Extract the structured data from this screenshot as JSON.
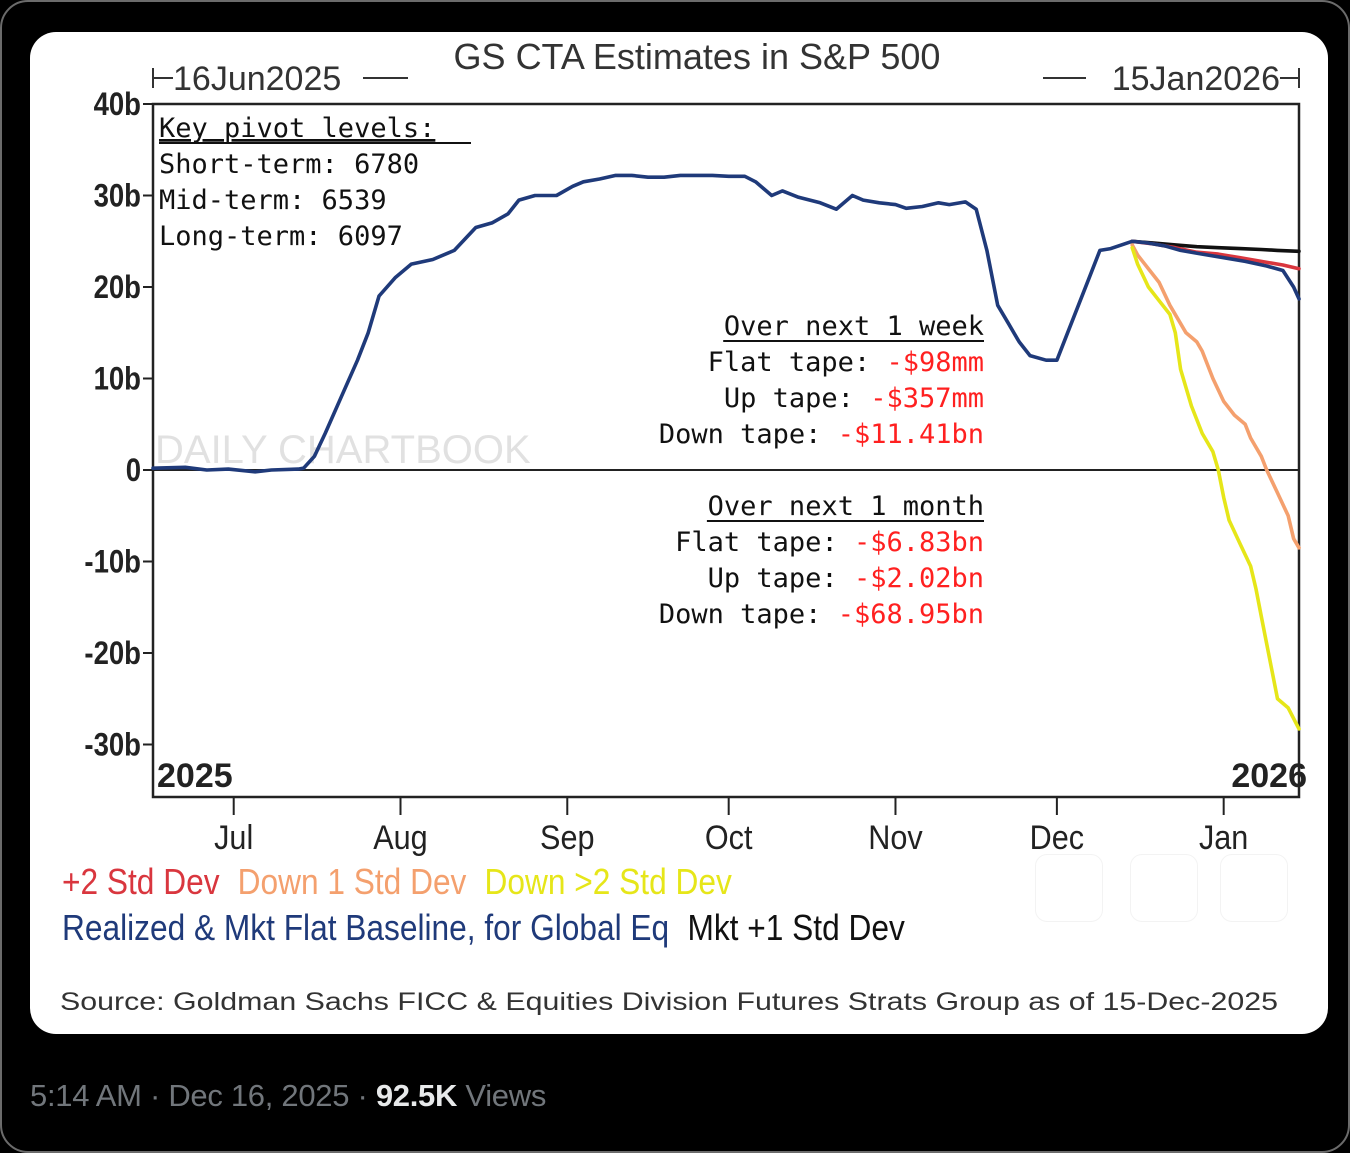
{
  "tweet_meta": {
    "time": "5:14 AM",
    "separator": "·",
    "date": "Dec 16, 2025",
    "views_count": "92.5K",
    "views_label": "Views"
  },
  "chart_data": {
    "type": "line",
    "title": "GS CTA Estimates in S&P 500",
    "start_date_label": "16Jun2025",
    "end_date_label": "15Jan2026",
    "xlabel": "",
    "ylabel": "",
    "x_units": "days since 16 Jun 2025",
    "xlim": [
      0,
      213
    ],
    "ylim": [
      -35,
      40
    ],
    "y_ticks": [
      {
        "value": 40,
        "label": "40b"
      },
      {
        "value": 30,
        "label": "30b"
      },
      {
        "value": 20,
        "label": "20b"
      },
      {
        "value": 10,
        "label": "10b"
      },
      {
        "value": 0,
        "label": "0"
      },
      {
        "value": -10,
        "label": "-10b"
      },
      {
        "value": -20,
        "label": "-20b"
      },
      {
        "value": -30,
        "label": "-30b"
      }
    ],
    "x_ticks": [
      {
        "value": 15,
        "label": "Jul"
      },
      {
        "value": 46,
        "label": "Aug"
      },
      {
        "value": 77,
        "label": "Sep"
      },
      {
        "value": 107,
        "label": "Oct"
      },
      {
        "value": 138,
        "label": "Nov"
      },
      {
        "value": 168,
        "label": "Dec"
      },
      {
        "value": 199,
        "label": "Jan"
      }
    ],
    "year_labels": {
      "left": "2025",
      "right": "2026"
    },
    "grid": false,
    "zero_line": true,
    "watermark": "DAILY CHARTBOOK",
    "series": [
      {
        "name": "Realized & Mkt Flat Baseline, for Global Eq",
        "color": "#1f3a7a",
        "points": [
          [
            0,
            0.2
          ],
          [
            6,
            0.3
          ],
          [
            10,
            0
          ],
          [
            14,
            0.1
          ],
          [
            19,
            -0.2
          ],
          [
            22,
            0
          ],
          [
            27,
            0.1
          ],
          [
            28,
            0.2
          ],
          [
            30,
            1.5
          ],
          [
            32,
            4
          ],
          [
            35,
            8
          ],
          [
            38,
            12
          ],
          [
            40,
            15
          ],
          [
            42,
            19
          ],
          [
            45,
            21
          ],
          [
            48,
            22.5
          ],
          [
            52,
            23
          ],
          [
            56,
            24
          ],
          [
            60,
            26.5
          ],
          [
            63,
            27
          ],
          [
            66,
            28
          ],
          [
            68,
            29.5
          ],
          [
            71,
            30
          ],
          [
            75,
            30
          ],
          [
            78,
            31
          ],
          [
            80,
            31.5
          ],
          [
            83,
            31.8
          ],
          [
            86,
            32.2
          ],
          [
            89,
            32.2
          ],
          [
            92,
            32
          ],
          [
            95,
            32
          ],
          [
            98,
            32.2
          ],
          [
            101,
            32.2
          ],
          [
            104,
            32.2
          ],
          [
            107,
            32.1
          ],
          [
            110,
            32.1
          ],
          [
            112,
            31.5
          ],
          [
            115,
            30
          ],
          [
            117,
            30.5
          ],
          [
            120,
            29.8
          ],
          [
            124,
            29.2
          ],
          [
            127,
            28.5
          ],
          [
            130,
            30
          ],
          [
            132,
            29.5
          ],
          [
            135,
            29.2
          ],
          [
            138,
            29
          ],
          [
            140,
            28.6
          ],
          [
            143,
            28.8
          ],
          [
            146,
            29.2
          ],
          [
            148,
            29
          ],
          [
            151,
            29.3
          ],
          [
            153,
            28.5
          ],
          [
            155,
            24
          ],
          [
            157,
            18
          ],
          [
            159,
            16
          ],
          [
            161,
            14
          ],
          [
            163,
            12.5
          ],
          [
            166,
            12
          ],
          [
            168,
            12
          ],
          [
            170,
            15
          ],
          [
            172,
            18
          ],
          [
            174,
            21
          ],
          [
            176,
            24
          ],
          [
            178,
            24.2
          ],
          [
            180,
            24.6
          ],
          [
            182,
            25
          ],
          [
            185,
            24.8
          ],
          [
            188,
            24.5
          ],
          [
            191,
            24
          ],
          [
            195,
            23.6
          ],
          [
            199,
            23.2
          ],
          [
            203,
            22.8
          ],
          [
            207,
            22.3
          ],
          [
            210,
            21.8
          ],
          [
            212,
            20
          ],
          [
            213,
            18.7
          ]
        ]
      },
      {
        "name": "Mkt +1 Std Dev",
        "color": "#111111",
        "points": [
          [
            182,
            25
          ],
          [
            186,
            24.8
          ],
          [
            190,
            24.6
          ],
          [
            194,
            24.4
          ],
          [
            198,
            24.3
          ],
          [
            202,
            24.2
          ],
          [
            206,
            24.1
          ],
          [
            209,
            24
          ],
          [
            213,
            23.9
          ]
        ]
      },
      {
        "name": "+2 Std Dev",
        "color": "#d9363e",
        "points": [
          [
            182,
            25
          ],
          [
            186,
            24.7
          ],
          [
            190,
            24.3
          ],
          [
            194,
            23.8
          ],
          [
            198,
            23.6
          ],
          [
            202,
            23.2
          ],
          [
            206,
            22.8
          ],
          [
            210,
            22.4
          ],
          [
            213,
            22
          ]
        ]
      },
      {
        "name": "Down 1 Std Dev",
        "color": "#f4a06e",
        "points": [
          [
            182,
            24.6
          ],
          [
            183,
            23.5
          ],
          [
            185,
            22
          ],
          [
            187,
            20.5
          ],
          [
            189,
            18
          ],
          [
            192,
            15
          ],
          [
            194,
            14
          ],
          [
            195,
            13
          ],
          [
            197,
            10
          ],
          [
            199,
            7.5
          ],
          [
            201,
            6
          ],
          [
            203,
            5
          ],
          [
            204,
            3.5
          ],
          [
            206,
            1.5
          ],
          [
            207,
            0
          ],
          [
            209,
            -2.5
          ],
          [
            211,
            -5
          ],
          [
            212,
            -7.5
          ],
          [
            213,
            -8.5
          ]
        ]
      },
      {
        "name": "Down >2 Std Dev",
        "color": "#e6e619",
        "points": [
          [
            182,
            24.3
          ],
          [
            183,
            22.5
          ],
          [
            185,
            20
          ],
          [
            187,
            18.5
          ],
          [
            189,
            17
          ],
          [
            190,
            15
          ],
          [
            191,
            11
          ],
          [
            192,
            9
          ],
          [
            193,
            7
          ],
          [
            195,
            4
          ],
          [
            197,
            2
          ],
          [
            198,
            0
          ],
          [
            199,
            -3
          ],
          [
            200,
            -5.5
          ],
          [
            202,
            -8
          ],
          [
            204,
            -10.5
          ],
          [
            205,
            -13
          ],
          [
            206,
            -16
          ],
          [
            207,
            -19
          ],
          [
            208,
            -22
          ],
          [
            209,
            -25
          ],
          [
            211,
            -26
          ],
          [
            213,
            -28.3
          ]
        ]
      }
    ],
    "legend": {
      "placement": "bottom",
      "rows": [
        [
          {
            "label": "+2 Std Dev",
            "color": "#d9363e"
          },
          {
            "label": "Down 1 Std Dev",
            "color": "#f4a06e"
          },
          {
            "label": "Down >2 Std Dev",
            "color": "#e6e619"
          }
        ],
        [
          {
            "label": "Realized & Mkt Flat Baseline, for Global Eq",
            "color": "#1f3a7a"
          },
          {
            "label": "Mkt +1 Std Dev",
            "color": "#111111"
          }
        ]
      ]
    },
    "annotations": {
      "pivots": {
        "heading": "Key pivot levels:",
        "lines": [
          "Short-term: 6780",
          "Mid-term: 6539",
          "Long-term: 6097"
        ]
      },
      "week": {
        "heading": "Over next 1 week",
        "rows": [
          {
            "label": "Flat tape:",
            "value": "-$98mm"
          },
          {
            "label": "Up tape:",
            "value": "-$357mm"
          },
          {
            "label": "Down tape:",
            "value": "-$11.41bn"
          }
        ]
      },
      "month": {
        "heading": "Over next 1 month",
        "rows": [
          {
            "label": "Flat tape:",
            "value": "-$6.83bn"
          },
          {
            "label": "Up tape:",
            "value": "-$2.02bn"
          },
          {
            "label": "Down tape:",
            "value": "-$68.95bn"
          }
        ]
      },
      "value_color": "#ff2020"
    },
    "source": "Source: Goldman Sachs FICC & Equities Division Futures Strats Group as of 15-Dec-2025"
  }
}
